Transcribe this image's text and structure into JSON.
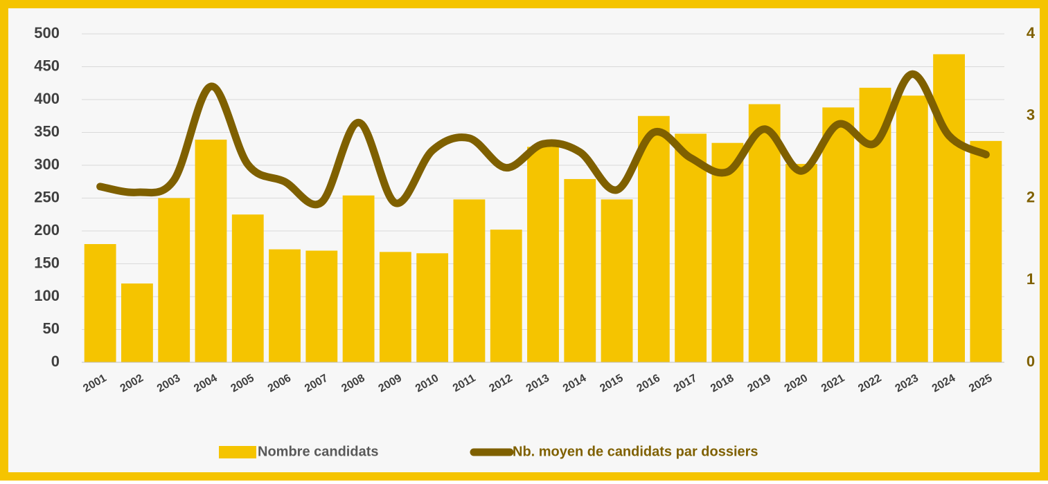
{
  "chart_data": {
    "type": "bar_line",
    "categories": [
      "2001",
      "2002",
      "2003",
      "2004",
      "2005",
      "2006",
      "2007",
      "2008",
      "2009",
      "2010",
      "2011",
      "2012",
      "2013",
      "2014",
      "2015",
      "2016",
      "2017",
      "2018",
      "2019",
      "2020",
      "2021",
      "2022",
      "2023",
      "2024",
      "2025"
    ],
    "series": [
      {
        "name": "Nombre candidats",
        "type": "bar",
        "color": "#f5c400",
        "values": [
          180,
          120,
          250,
          339,
          225,
          172,
          170,
          254,
          168,
          166,
          248,
          202,
          328,
          279,
          248,
          375,
          348,
          334,
          393,
          302,
          388,
          418,
          406,
          469,
          337
        ]
      },
      {
        "name": "Nb. moyen de candidats par dossiers",
        "type": "line",
        "axis": "y2",
        "color": "#7f6000",
        "values": [
          2.14,
          2.07,
          2.22,
          3.36,
          2.41,
          2.2,
          1.95,
          2.92,
          1.94,
          2.58,
          2.73,
          2.37,
          2.66,
          2.56,
          2.1,
          2.8,
          2.49,
          2.32,
          2.84,
          2.33,
          2.9,
          2.67,
          3.51,
          2.76,
          2.53
        ]
      }
    ],
    "ylim": [
      0,
      500
    ],
    "yticks": [
      0,
      50,
      100,
      150,
      200,
      250,
      300,
      350,
      400,
      450,
      500
    ],
    "y2lim": [
      0,
      4
    ],
    "y2ticks": [
      0,
      1,
      2,
      3,
      4
    ],
    "grid": true,
    "legend": "bottom"
  }
}
